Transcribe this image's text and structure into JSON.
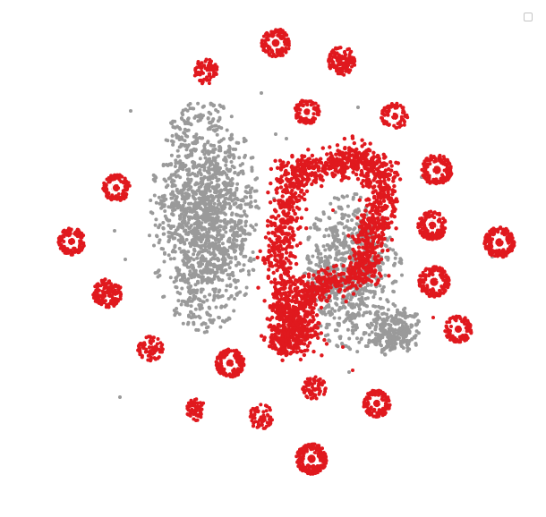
{
  "chart_data": {
    "type": "scatter",
    "title": "",
    "xlabel": "",
    "ylabel": "",
    "grid": false,
    "legend": {
      "placement": "top-right",
      "entries": []
    },
    "series": [
      {
        "color": "#9a9a9a",
        "shape": "elongated-cloud",
        "clusters": [
          {
            "cx": 228,
            "cy": 242,
            "rx": 62,
            "ry": 132,
            "n": 1100
          },
          {
            "cx": 392,
            "cy": 305,
            "rx": 58,
            "ry": 92,
            "n": 520
          },
          {
            "cx": 442,
            "cy": 370,
            "rx": 30,
            "ry": 30,
            "n": 180
          }
        ],
        "outliers": [
          [
            292,
            104
          ],
          [
            146,
            124
          ],
          [
            400,
            120
          ],
          [
            320,
            155
          ],
          [
            134,
            444
          ],
          [
            128,
            258
          ],
          [
            140,
            290
          ],
          [
            186,
            184
          ],
          [
            471,
            198
          ],
          [
            390,
            416
          ],
          [
            550,
            287
          ],
          [
            308,
            150
          ],
          [
            306,
            222
          ]
        ]
      },
      {
        "color": "#e0191e",
        "shape": "ring-cluster",
        "clusters": [
          {
            "cx": 308,
            "cy": 48,
            "r": 16,
            "n": 150,
            "hollow": true
          },
          {
            "cx": 382,
            "cy": 68,
            "r": 16,
            "n": 140,
            "hollow": false
          },
          {
            "cx": 230,
            "cy": 80,
            "r": 14,
            "n": 70,
            "hollow": false
          },
          {
            "cx": 343,
            "cy": 125,
            "r": 14,
            "n": 110,
            "hollow": true
          },
          {
            "cx": 441,
            "cy": 130,
            "r": 15,
            "n": 90,
            "hollow": true
          },
          {
            "cx": 130,
            "cy": 210,
            "r": 15,
            "n": 140,
            "hollow": true
          },
          {
            "cx": 488,
            "cy": 190,
            "r": 17,
            "n": 180,
            "hollow": true
          },
          {
            "cx": 483,
            "cy": 252,
            "r": 16,
            "n": 160,
            "hollow": true
          },
          {
            "cx": 80,
            "cy": 270,
            "r": 15,
            "n": 150,
            "hollow": true
          },
          {
            "cx": 558,
            "cy": 271,
            "r": 17,
            "n": 200,
            "hollow": true
          },
          {
            "cx": 485,
            "cy": 315,
            "r": 17,
            "n": 200,
            "hollow": true
          },
          {
            "cx": 120,
            "cy": 328,
            "r": 16,
            "n": 140,
            "hollow": false
          },
          {
            "cx": 512,
            "cy": 368,
            "r": 15,
            "n": 140,
            "hollow": true
          },
          {
            "cx": 168,
            "cy": 390,
            "r": 14,
            "n": 70,
            "hollow": false
          },
          {
            "cx": 257,
            "cy": 406,
            "r": 16,
            "n": 170,
            "hollow": true
          },
          {
            "cx": 351,
            "cy": 434,
            "r": 13,
            "n": 70,
            "hollow": false
          },
          {
            "cx": 421,
            "cy": 451,
            "r": 15,
            "n": 150,
            "hollow": true
          },
          {
            "cx": 219,
            "cy": 458,
            "r": 12,
            "n": 55,
            "hollow": false
          },
          {
            "cx": 292,
            "cy": 466,
            "r": 14,
            "n": 60,
            "hollow": false
          },
          {
            "cx": 348,
            "cy": 513,
            "r": 17,
            "n": 220,
            "hollow": true
          }
        ],
        "paths": [
          {
            "n": 1300,
            "points": [
              [
                322,
                190
              ],
              [
                345,
                190
              ],
              [
                375,
                183
              ],
              [
                395,
                175
              ],
              [
                412,
                182
              ],
              [
                430,
                195
              ],
              [
                428,
                225
              ],
              [
                418,
                255
              ],
              [
                408,
                278
              ],
              [
                410,
                300
              ],
              [
                395,
                310
              ],
              [
                362,
                318
              ],
              [
                342,
                330
              ],
              [
                335,
                360
              ],
              [
                346,
                377
              ]
            ]
          },
          {
            "n": 700,
            "points": [
              [
                330,
                200
              ],
              [
                318,
                240
              ],
              [
                310,
                285
              ],
              [
                318,
                330
              ],
              [
                322,
                360
              ],
              [
                312,
                385
              ],
              [
                340,
                378
              ]
            ]
          }
        ],
        "outliers": [
          [
            383,
            388
          ],
          [
            404,
            205
          ],
          [
            393,
            180
          ],
          [
            372,
            235
          ],
          [
            394,
            414
          ],
          [
            484,
            355
          ]
        ]
      }
    ]
  }
}
